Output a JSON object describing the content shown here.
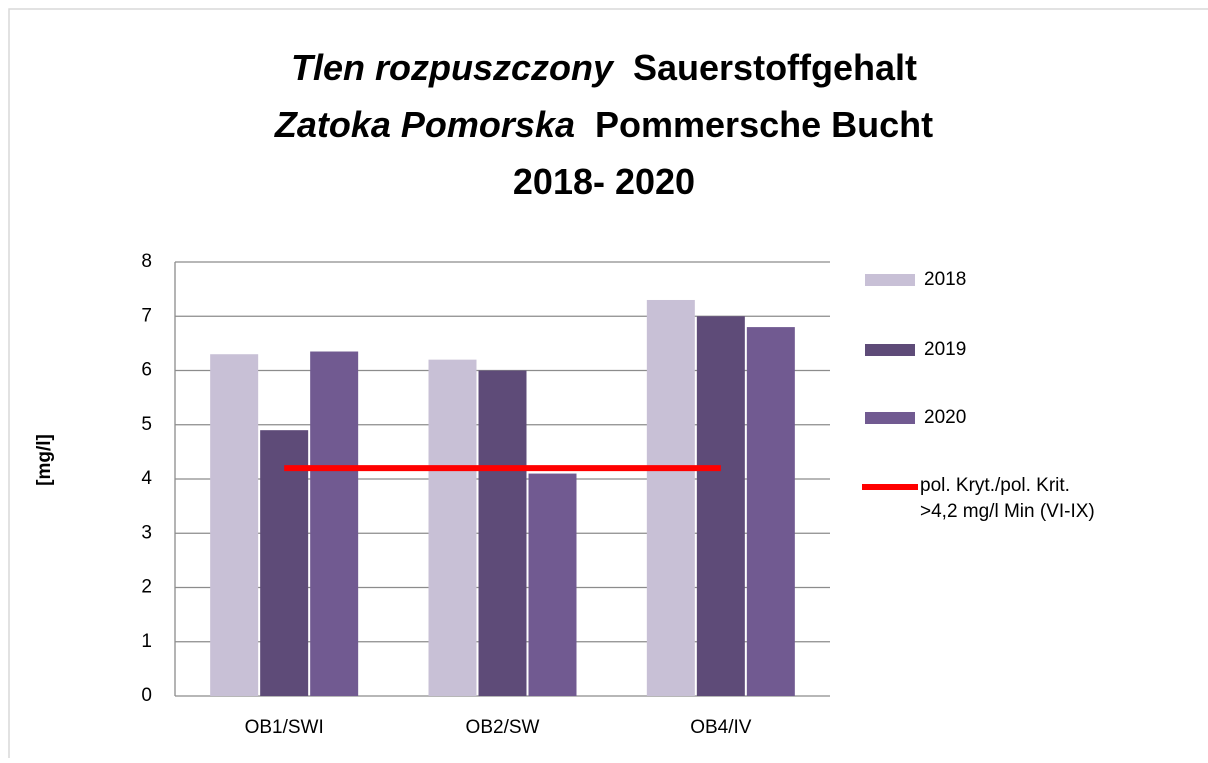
{
  "chart_data": {
    "type": "bar",
    "title_lines": [
      {
        "italic": "Tlen rozpuszczony",
        "plain": "Sauerstoffgehalt"
      },
      {
        "italic": "Zatoka Pomorska",
        "plain": "Pommersche Bucht"
      },
      {
        "plain": "2018- 2020"
      }
    ],
    "y_label": "[mg/l]",
    "categories": [
      "OB1/SWI",
      "OB2/SW",
      "OB4/IV"
    ],
    "series": [
      {
        "name": "2018",
        "color": "#c8c0d6",
        "values": [
          6.3,
          6.2,
          7.3
        ]
      },
      {
        "name": "2019",
        "color": "#5e4b78",
        "values": [
          4.9,
          6.0,
          7.0
        ]
      },
      {
        "name": "2020",
        "color": "#715a91",
        "values": [
          6.35,
          4.1,
          6.8
        ]
      },
      {
        "name": "pol. Kryt./pol. Krit. >4,2 mg/l Min (VI-IX)",
        "color": "#ff0000",
        "type": "line",
        "values": [
          4.2,
          4.2,
          4.2
        ]
      }
    ],
    "ylim": [
      0,
      8
    ],
    "yticks": [
      0,
      1,
      2,
      3,
      4,
      5,
      6,
      7,
      8
    ],
    "grid": true,
    "legend": "right"
  }
}
